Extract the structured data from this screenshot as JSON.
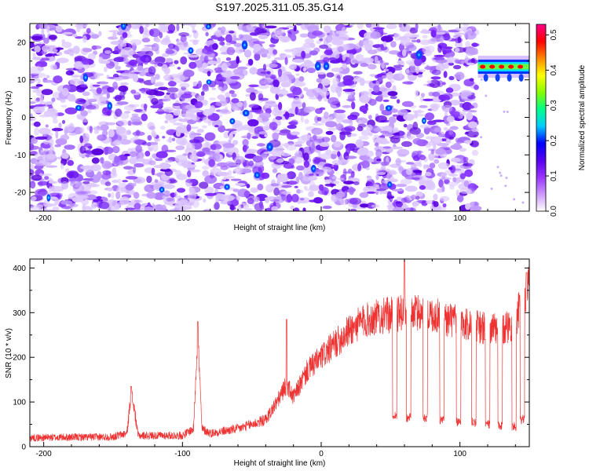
{
  "title": "S197.2025.311.05.35.G14",
  "chart_data": [
    {
      "type": "heatmap",
      "xlabel": "Height of straight line (km)",
      "ylabel": "Frequency (Hz)",
      "xlim": [
        -210,
        150
      ],
      "ylim": [
        -25,
        25
      ],
      "xticks": [
        -200,
        -100,
        0,
        100
      ],
      "yticks": [
        -20,
        -10,
        0,
        10,
        20
      ],
      "colorbar": {
        "label": "Normalized spectral amplitude",
        "range": [
          0,
          0.53
        ],
        "ticks": [
          "0.0",
          "0.1",
          "0.2",
          "0.3",
          "0.4",
          "0.5"
        ],
        "colormap": [
          "#ffffff",
          "#cc99ff",
          "#9933ff",
          "#5500ee",
          "#0000ff",
          "#00ccff",
          "#00ff88",
          "#88ff00",
          "#ffff00",
          "#ff8800",
          "#ff0000",
          "#ff0088"
        ]
      },
      "features": {
        "noise_region_x": [
          -210,
          112
        ],
        "blank_region_x": [
          112,
          150
        ],
        "signal_band": {
          "x": [
            113,
            150
          ],
          "frequency": 13.5,
          "peak_amplitude": 0.5
        }
      }
    },
    {
      "type": "line",
      "xlabel": "Height of straight line (km)",
      "ylabel": "SNR (10 * v/v)",
      "xlim": [
        -210,
        150
      ],
      "ylim": [
        0,
        420
      ],
      "xticks": [
        -200,
        -100,
        0,
        100
      ],
      "yticks": [
        0,
        100,
        200,
        300,
        400
      ],
      "color": "#ee3333",
      "trend": [
        [
          -210,
          20
        ],
        [
          -150,
          22
        ],
        [
          -140,
          30
        ],
        [
          -137,
          120
        ],
        [
          -135,
          90
        ],
        [
          -132,
          25
        ],
        [
          -100,
          25
        ],
        [
          -92,
          40
        ],
        [
          -89,
          260
        ],
        [
          -86,
          40
        ],
        [
          -80,
          30
        ],
        [
          -60,
          40
        ],
        [
          -40,
          60
        ],
        [
          -30,
          110
        ],
        [
          -25,
          140
        ],
        [
          -20,
          110
        ],
        [
          -10,
          170
        ],
        [
          0,
          200
        ],
        [
          10,
          230
        ],
        [
          20,
          260
        ],
        [
          30,
          280
        ],
        [
          40,
          290
        ],
        [
          50,
          295
        ],
        [
          60,
          300
        ],
        [
          70,
          300
        ],
        [
          80,
          295
        ],
        [
          90,
          285
        ],
        [
          100,
          280
        ],
        [
          110,
          270
        ],
        [
          120,
          265
        ],
        [
          130,
          260
        ],
        [
          140,
          280
        ],
        [
          145,
          330
        ],
        [
          150,
          360
        ]
      ],
      "spikes": [
        {
          "x": -137,
          "y": 135
        },
        {
          "x": -89,
          "y": 280
        },
        {
          "x": -25,
          "y": 285
        },
        {
          "x": 60,
          "y": 415
        },
        {
          "x": 148,
          "y": 390
        }
      ],
      "dips": [
        {
          "x": 53,
          "y": 70
        },
        {
          "x": 63,
          "y": 65
        },
        {
          "x": 75,
          "y": 65
        },
        {
          "x": 87,
          "y": 60
        },
        {
          "x": 99,
          "y": 55
        },
        {
          "x": 110,
          "y": 55
        },
        {
          "x": 120,
          "y": 50
        },
        {
          "x": 129,
          "y": 45
        },
        {
          "x": 139,
          "y": 45
        },
        {
          "x": 145,
          "y": 60
        }
      ]
    }
  ]
}
